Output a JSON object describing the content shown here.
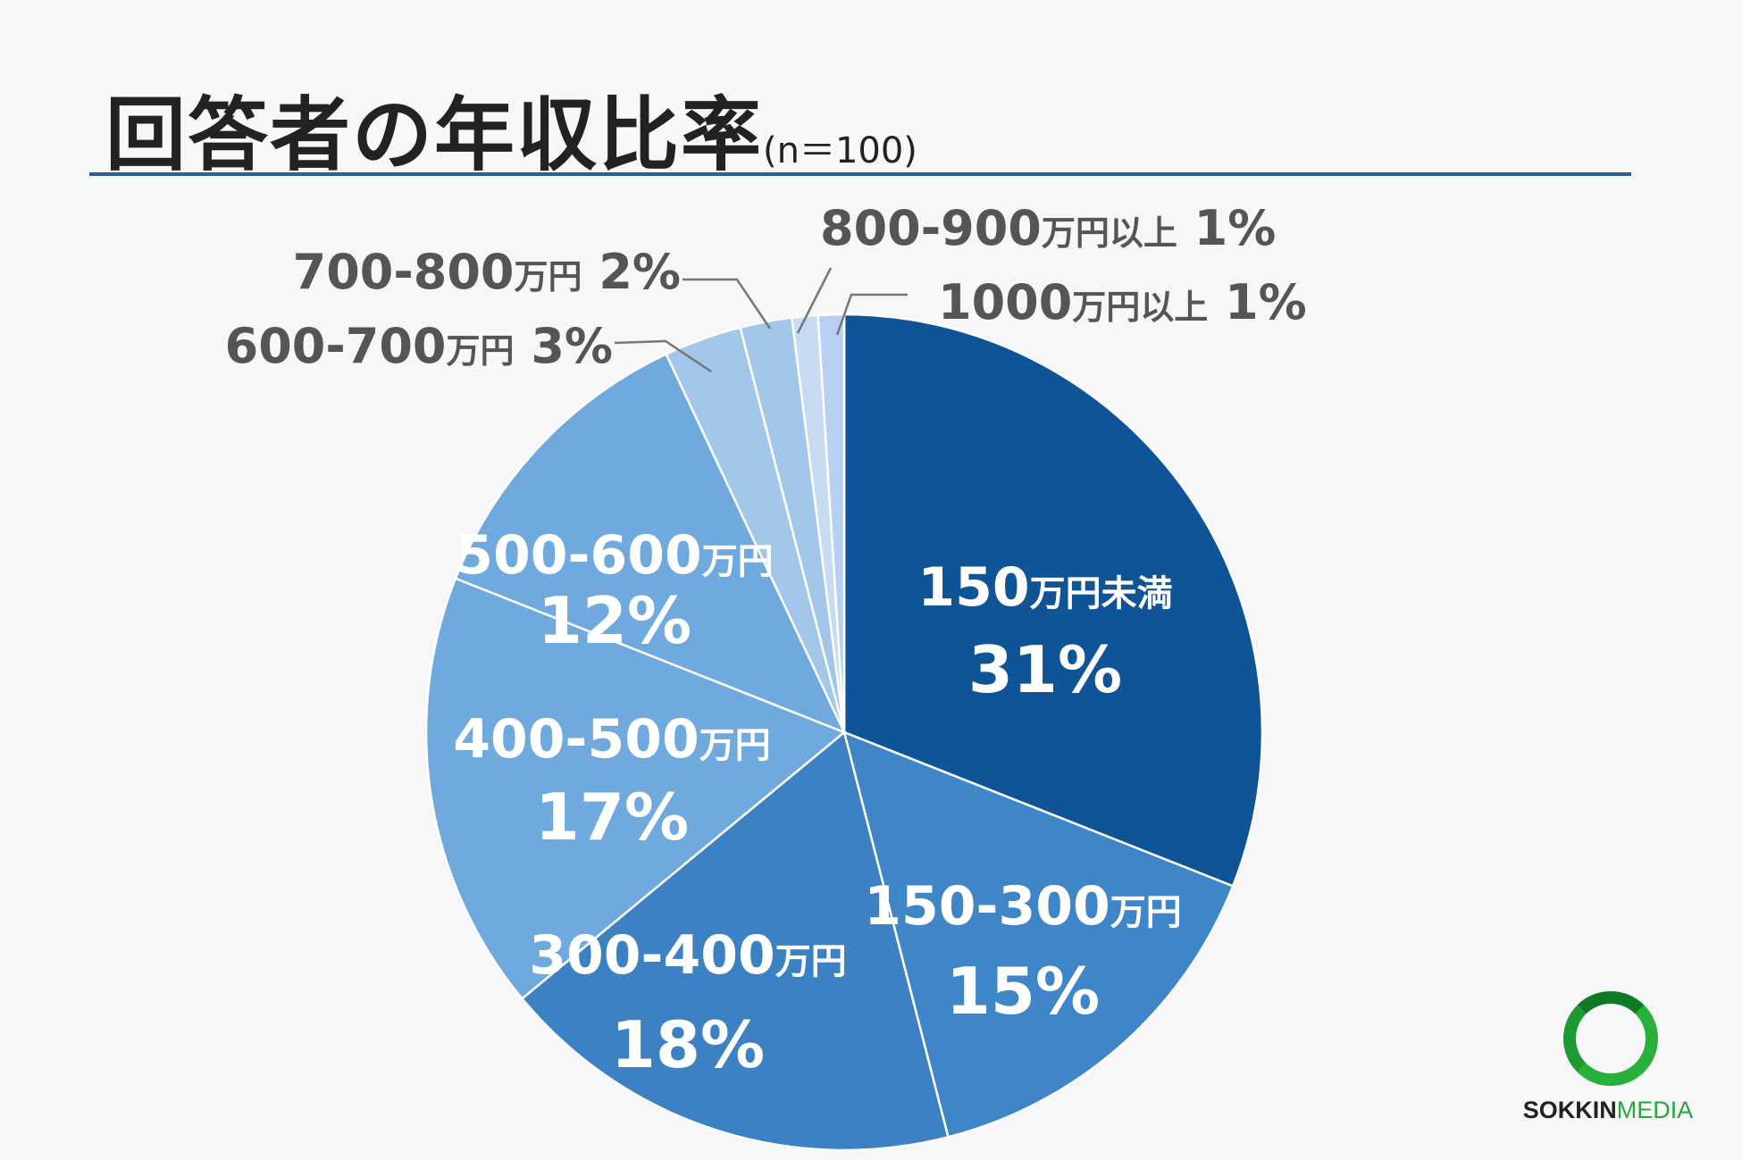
{
  "title": {
    "main": "回答者の年収比率",
    "sub": "(n＝100)"
  },
  "chart_data": {
    "type": "pie",
    "categories": [
      "150万円未満",
      "150-300万円",
      "300-400万円",
      "400-500万円",
      "500-600万円",
      "600-700万円",
      "700-800万円",
      "800-900万円以上",
      "1000万円以上"
    ],
    "values": [
      31,
      15,
      18,
      17,
      12,
      3,
      2,
      1,
      1
    ],
    "value_labels": [
      "31%",
      "15%",
      "18%",
      "17%",
      "12%",
      "3%",
      "2%",
      "1%",
      "1%"
    ],
    "colors": [
      "#0e5496",
      "#3f86c8",
      "#3c81c4",
      "#6fa9de",
      "#6fa9de",
      "#a3c7ea",
      "#a3c7ea",
      "#c7dcf2",
      "#b9d0f5"
    ],
    "start": "12 o'clock, clockwise",
    "labels": [
      {
        "range": "150",
        "unit": "万円未満",
        "pct": "31%"
      },
      {
        "range": "150-300",
        "unit": "万円",
        "pct": "15%"
      },
      {
        "range": "300-400",
        "unit": "万円",
        "pct": "18%"
      },
      {
        "range": "400-500",
        "unit": "万円",
        "pct": "17%"
      },
      {
        "range": "500-600",
        "unit": "万円",
        "pct": "12%"
      },
      {
        "range": "600-700",
        "unit": "万円",
        "pct": "3%"
      },
      {
        "range": "700-800",
        "unit": "万円",
        "pct": "2%"
      },
      {
        "range": "800-900",
        "unit": "万円以上",
        "pct": "1%"
      },
      {
        "range": "1000",
        "unit": "万円以上",
        "pct": "1%"
      }
    ]
  },
  "logo": {
    "name_part1": "SOKKIN",
    "name_part2": "MEDIA"
  }
}
